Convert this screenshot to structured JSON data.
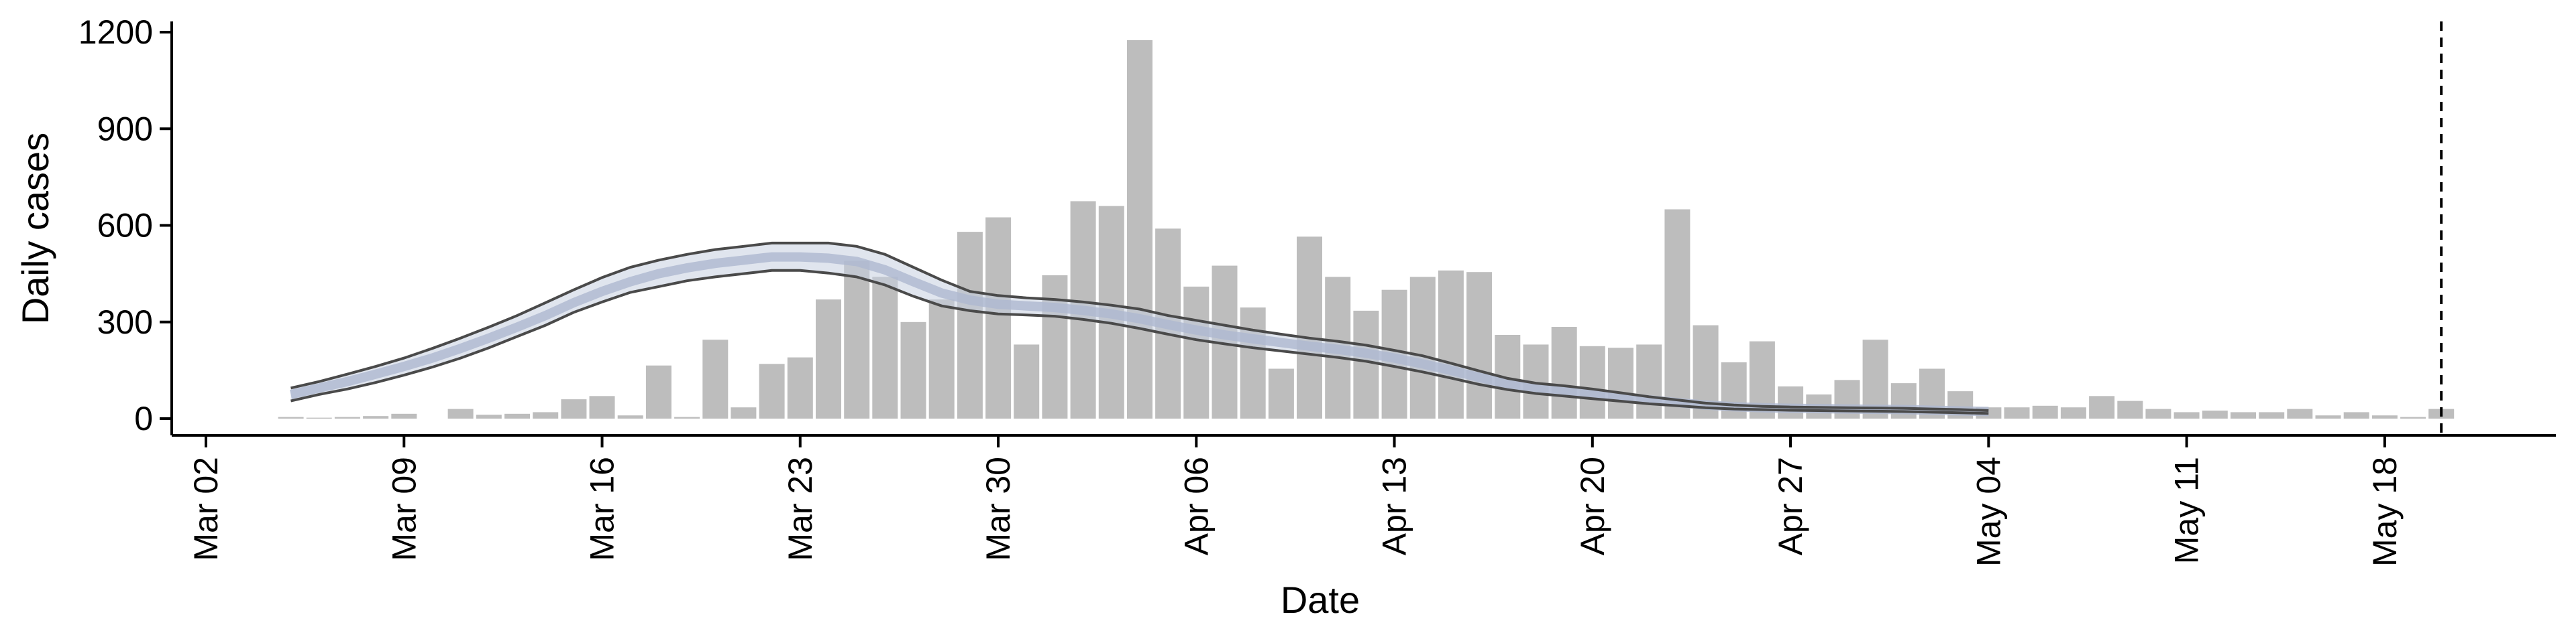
{
  "chart_data": {
    "type": "bar",
    "xlabel": "Date",
    "ylabel": "Daily cases",
    "ylim": [
      0,
      1200
    ],
    "yticks": [
      0,
      300,
      600,
      900,
      1200
    ],
    "xticks": [
      "Mar 02",
      "Mar 09",
      "Mar 16",
      "Mar 23",
      "Mar 30",
      "Apr 06",
      "Apr 13",
      "Apr 20",
      "Apr 27",
      "May 04",
      "May 11",
      "May 18"
    ],
    "grid": false,
    "legend": "none",
    "x_start": "Mar 05",
    "x_end": "May 20",
    "values": [
      5,
      3,
      5,
      8,
      15,
      0,
      30,
      12,
      15,
      20,
      60,
      70,
      10,
      165,
      5,
      245,
      35,
      170,
      190,
      370,
      490,
      440,
      300,
      370,
      580,
      625,
      230,
      445,
      675,
      660,
      1175,
      590,
      410,
      475,
      345,
      155,
      565,
      440,
      335,
      400,
      440,
      460,
      455,
      260,
      230,
      285,
      225,
      220,
      230,
      650,
      290,
      175,
      240,
      100,
      75,
      120,
      245,
      110,
      155,
      85,
      35,
      35,
      40,
      35,
      70,
      55,
      30,
      20,
      25,
      20,
      20,
      30,
      10,
      20,
      10,
      5,
      30
    ],
    "estimate": {
      "upper": [
        95,
        115,
        138,
        162,
        188,
        218,
        250,
        284,
        320,
        360,
        400,
        438,
        470,
        492,
        510,
        525,
        535,
        545,
        545,
        545,
        535,
        510,
        470,
        430,
        395,
        382,
        375,
        370,
        362,
        352,
        340,
        320,
        305,
        290,
        275,
        262,
        250,
        240,
        228,
        212,
        195,
        172,
        148,
        125,
        110,
        102,
        92,
        80,
        68,
        58,
        48,
        42,
        38,
        36,
        35,
        34,
        33,
        32,
        30,
        28,
        25
      ],
      "center": [
        75,
        95,
        115,
        138,
        162,
        188,
        218,
        250,
        284,
        320,
        360,
        395,
        425,
        450,
        468,
        482,
        492,
        502,
        502,
        498,
        488,
        462,
        425,
        390,
        368,
        355,
        350,
        345,
        336,
        325,
        310,
        292,
        275,
        260,
        248,
        236,
        225,
        215,
        203,
        188,
        170,
        150,
        128,
        108,
        95,
        87,
        78,
        68,
        58,
        50,
        42,
        37,
        34,
        32,
        31,
        30,
        29,
        28,
        26,
        24,
        22
      ],
      "lower": [
        55,
        75,
        92,
        112,
        135,
        160,
        188,
        220,
        255,
        290,
        330,
        362,
        392,
        410,
        428,
        440,
        450,
        460,
        460,
        452,
        440,
        415,
        380,
        350,
        335,
        325,
        322,
        318,
        308,
        296,
        280,
        262,
        245,
        232,
        220,
        210,
        200,
        190,
        178,
        162,
        145,
        126,
        106,
        90,
        78,
        70,
        62,
        54,
        46,
        40,
        34,
        30,
        28,
        26,
        25,
        24,
        23,
        22,
        20,
        18,
        16
      ],
      "band_color": "#c7cfe0",
      "line_color": "#4a4a4a"
    },
    "bar_color": "#bdbdbd",
    "reference_line": {
      "date": "May 20",
      "style": "dashed"
    }
  }
}
